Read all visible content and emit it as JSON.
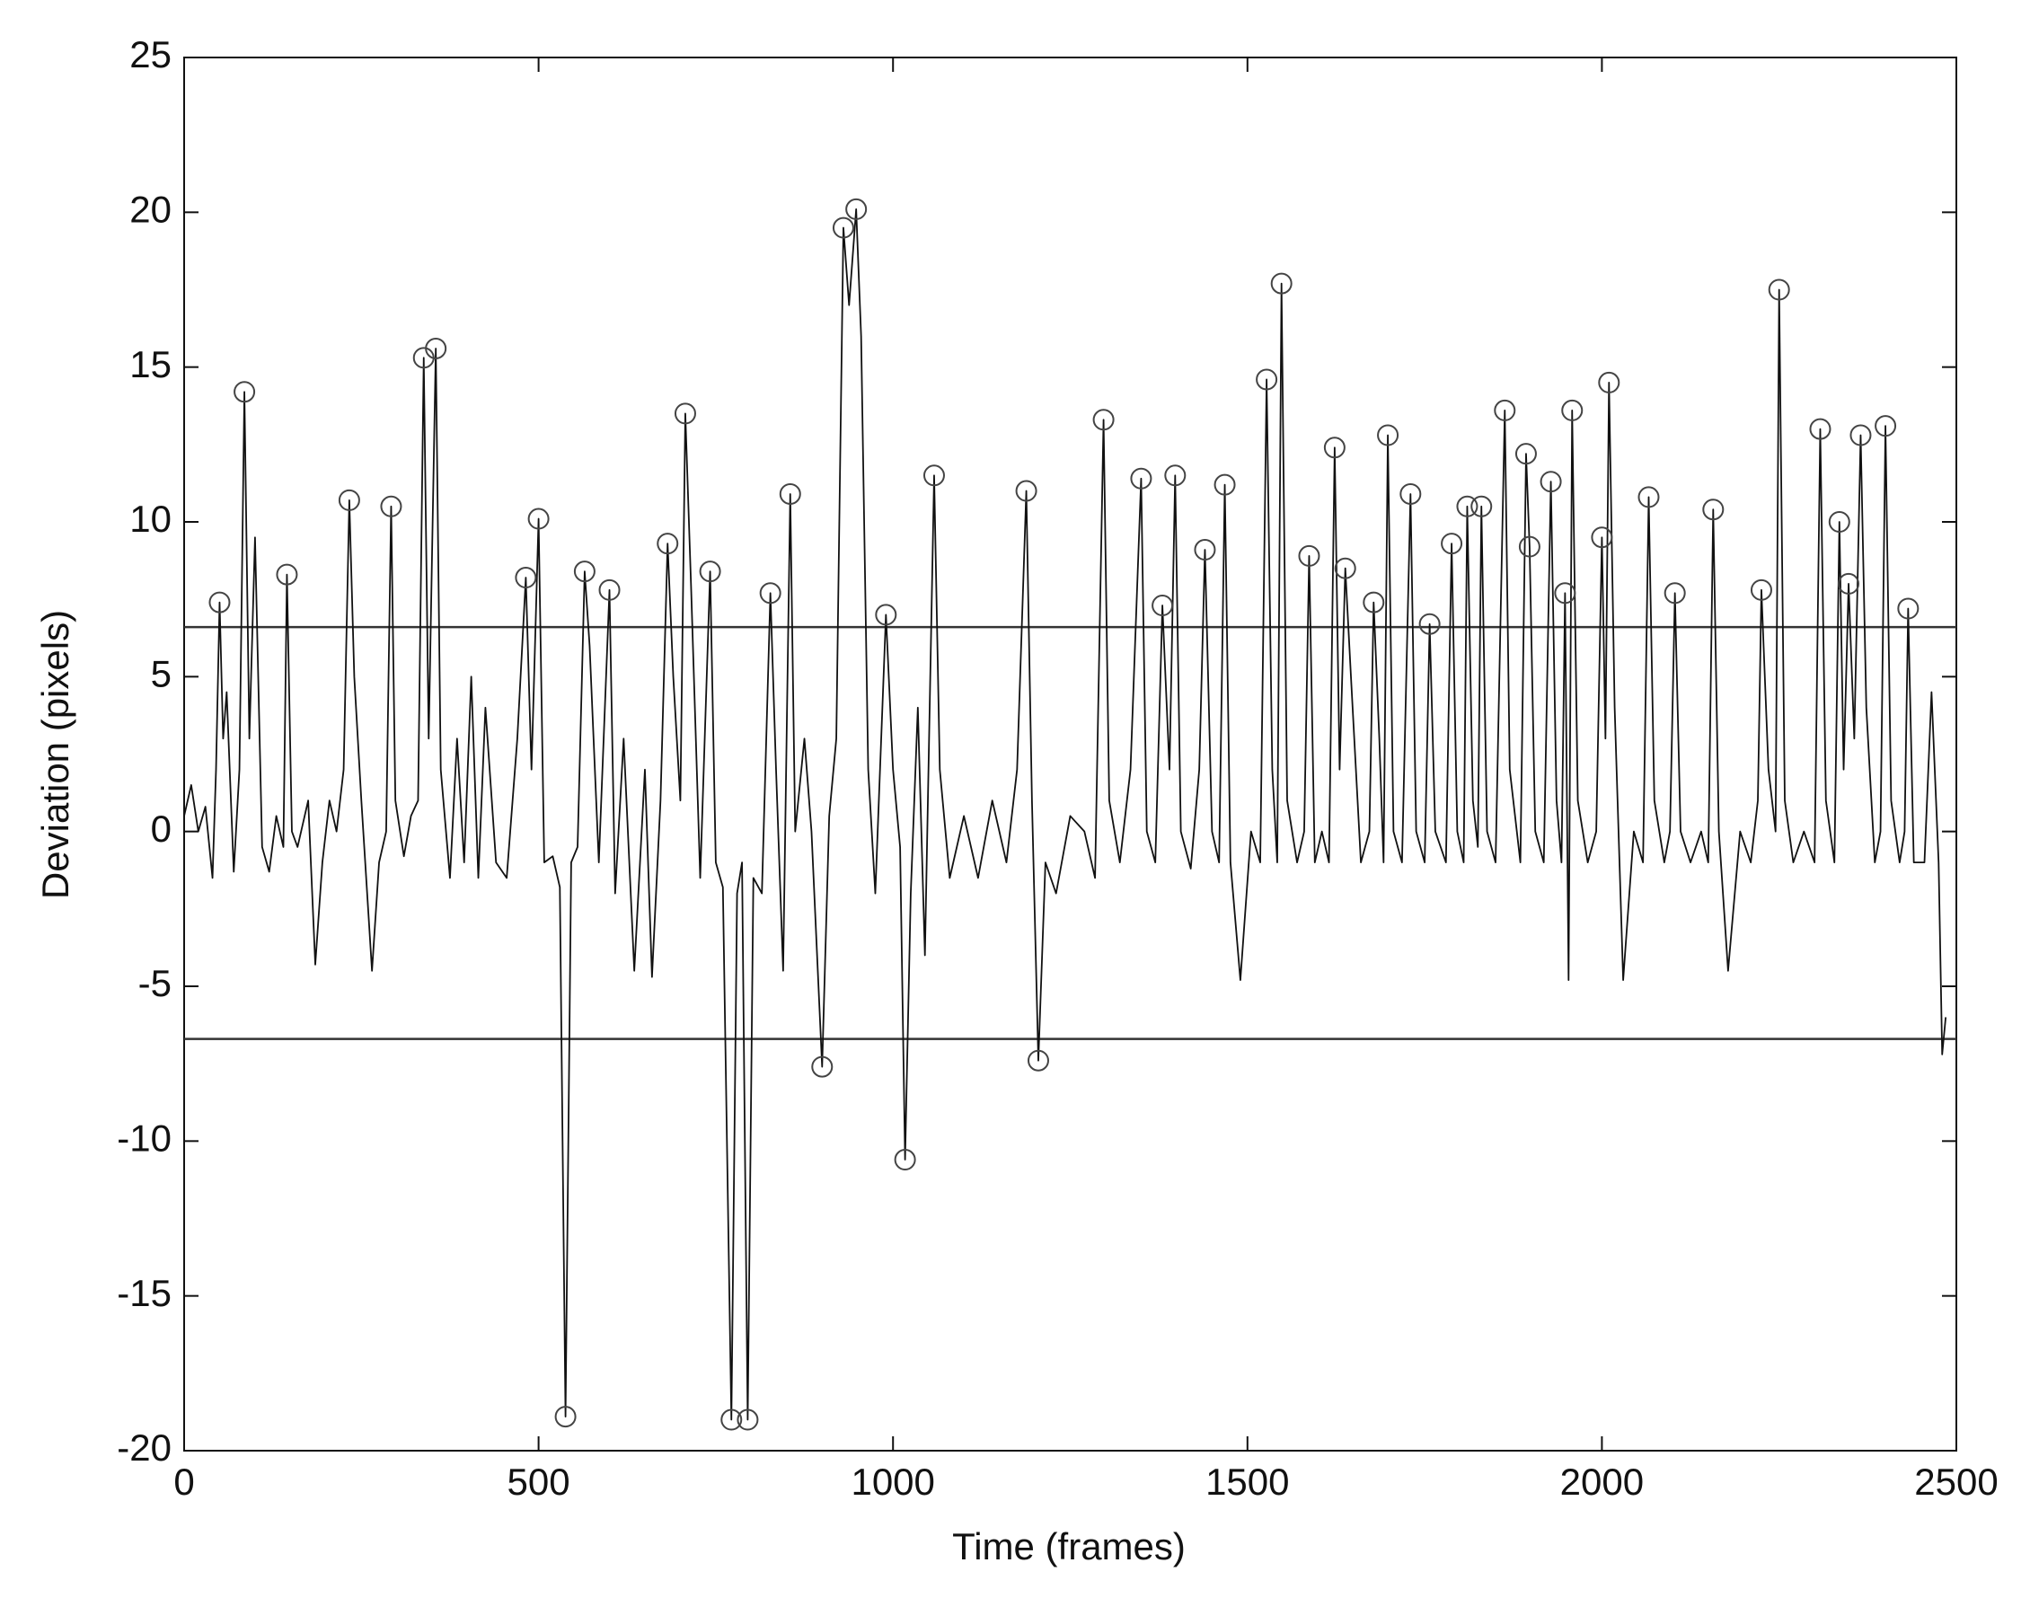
{
  "chart_data": {
    "type": "line",
    "x_label": "Time (frames)",
    "y_label": "Deviation (pixels)",
    "xlim": [
      0,
      2500
    ],
    "xticks": [
      0,
      500,
      1000,
      1500,
      2000,
      2500
    ],
    "ylim": [
      -20,
      25
    ],
    "yticks": [
      -20,
      -15,
      -10,
      -5,
      0,
      5,
      10,
      15,
      20,
      25
    ],
    "grid": false,
    "reference_lines": [
      6.6,
      -6.7
    ],
    "reference_color": "#333333",
    "series": [
      {
        "kind": "line",
        "color": "#111111",
        "x": [
          0,
          10,
          20,
          30,
          40,
          45,
          50,
          55,
          60,
          70,
          78,
          85,
          92,
          100,
          110,
          120,
          130,
          140,
          145,
          152,
          160,
          175,
          185,
          195,
          205,
          215,
          225,
          233,
          240,
          250,
          265,
          275,
          285,
          292,
          298,
          310,
          320,
          330,
          338,
          345,
          355,
          362,
          375,
          385,
          395,
          405,
          415,
          425,
          440,
          455,
          470,
          482,
          490,
          500,
          508,
          520,
          530,
          538,
          546,
          555,
          565,
          572,
          585,
          600,
          608,
          620,
          635,
          650,
          660,
          672,
          682,
          690,
          700,
          707,
          715,
          728,
          742,
          750,
          760,
          772,
          780,
          787,
          795,
          803,
          815,
          827,
          835,
          845,
          855,
          862,
          875,
          885,
          900,
          910,
          920,
          930,
          938,
          948,
          955,
          965,
          975,
          990,
          1000,
          1010,
          1017,
          1025,
          1035,
          1045,
          1058,
          1066,
          1080,
          1100,
          1120,
          1140,
          1160,
          1175,
          1188,
          1196,
          1205,
          1215,
          1230,
          1250,
          1270,
          1285,
          1297,
          1305,
          1320,
          1335,
          1350,
          1358,
          1370,
          1380,
          1390,
          1398,
          1406,
          1420,
          1432,
          1440,
          1450,
          1460,
          1468,
          1476,
          1490,
          1505,
          1518,
          1527,
          1535,
          1542,
          1548,
          1556,
          1570,
          1580,
          1587,
          1595,
          1605,
          1615,
          1623,
          1630,
          1638,
          1646,
          1660,
          1672,
          1678,
          1686,
          1692,
          1698,
          1706,
          1718,
          1730,
          1738,
          1750,
          1757,
          1765,
          1780,
          1788,
          1796,
          1805,
          1810,
          1818,
          1825,
          1830,
          1838,
          1850,
          1863,
          1870,
          1885,
          1893,
          1898,
          1906,
          1918,
          1928,
          1936,
          1943,
          1948,
          1953,
          1958,
          1966,
          1980,
          1992,
          2000,
          2005,
          2010,
          2018,
          2030,
          2045,
          2058,
          2066,
          2074,
          2088,
          2096,
          2103,
          2111,
          2125,
          2140,
          2150,
          2157,
          2165,
          2178,
          2195,
          2210,
          2220,
          2225,
          2235,
          2245,
          2250,
          2258,
          2270,
          2285,
          2300,
          2308,
          2316,
          2328,
          2335,
          2341,
          2348,
          2356,
          2365,
          2373,
          2385,
          2393,
          2400,
          2408,
          2420,
          2427,
          2432,
          2440,
          2455,
          2465,
          2475,
          2480,
          2485
        ],
        "values": [
          0.5,
          1.5,
          0,
          0.8,
          -1.5,
          2,
          7.4,
          3,
          4.5,
          -1.3,
          2,
          14.2,
          3,
          9.5,
          -0.5,
          -1.3,
          0.5,
          -0.5,
          8.3,
          0,
          -0.5,
          1,
          -4.3,
          -1,
          1,
          0,
          2,
          10.7,
          5,
          1,
          -4.5,
          -1,
          0,
          10.5,
          1,
          -0.8,
          0.5,
          1,
          15.3,
          3,
          15.6,
          2,
          -1.5,
          3,
          -1,
          5,
          -1.5,
          4,
          -1,
          -1.5,
          3,
          8.2,
          2,
          10.1,
          -1,
          -0.8,
          -1.8,
          -18.9,
          -1,
          -0.5,
          8.4,
          6,
          -1,
          7.8,
          -2,
          3,
          -4.5,
          2,
          -4.7,
          1,
          9.3,
          5,
          1,
          13.5,
          8,
          -1.5,
          8.4,
          -1,
          -1.8,
          -19.0,
          -2,
          -1,
          -19.0,
          -1.5,
          -2,
          7.7,
          2,
          -4.5,
          10.9,
          0,
          3,
          0,
          -7.6,
          0.5,
          3,
          19.5,
          17,
          20.1,
          16,
          2,
          -2,
          7.0,
          2,
          -0.5,
          -10.6,
          -2,
          4,
          -4,
          11.5,
          2,
          -1.5,
          0.5,
          -1.5,
          1,
          -1,
          2,
          11.0,
          1,
          -7.4,
          -1,
          -2,
          0.5,
          0,
          -1.5,
          13.3,
          1,
          -1,
          2,
          11.4,
          0,
          -1,
          7.3,
          2,
          11.5,
          0,
          -1.2,
          2,
          9.1,
          0,
          -1,
          11.2,
          -1,
          -4.8,
          0,
          -1,
          14.6,
          2,
          -1,
          17.7,
          1,
          -1,
          0,
          8.9,
          -1,
          0,
          -1,
          12.4,
          2,
          8.5,
          5,
          -1,
          0,
          7.4,
          3,
          -1,
          12.8,
          0,
          -1,
          10.9,
          0,
          -1,
          6.7,
          0,
          -1,
          9.3,
          0,
          -1,
          10.5,
          1,
          -0.5,
          10.5,
          0,
          -1,
          13.6,
          2,
          -1,
          12.2,
          9.2,
          0,
          -1,
          11.3,
          1,
          -1,
          7.7,
          -4.8,
          13.6,
          1,
          -1,
          0,
          9.5,
          3,
          14.5,
          4,
          -4.8,
          0,
          -1,
          10.8,
          1,
          -1,
          0,
          7.7,
          0,
          -1,
          0,
          -1,
          10.4,
          0,
          -4.5,
          0,
          -1,
          1,
          7.8,
          2,
          0,
          17.5,
          1,
          -1,
          0,
          -1,
          13.0,
          1,
          -1,
          10.0,
          2,
          8.0,
          3,
          12.8,
          4,
          -1,
          0,
          13.1,
          1,
          -1,
          0,
          7.2,
          -1,
          -1,
          4.5,
          -1,
          -7.2,
          -6
        ]
      },
      {
        "kind": "peaks",
        "color": "#444444",
        "x": [
          50,
          85,
          145,
          233,
          292,
          338,
          355,
          482,
          500,
          565,
          600,
          682,
          707,
          742,
          827,
          855,
          930,
          948,
          990,
          1058,
          1188,
          1297,
          1350,
          1380,
          1398,
          1440,
          1468,
          1527,
          1548,
          1587,
          1623,
          1638,
          1678,
          1698,
          1730,
          1757,
          1788,
          1810,
          1830,
          1863,
          1893,
          1898,
          1928,
          1948,
          1958,
          2000,
          2010,
          2066,
          2103,
          2157,
          2225,
          2250,
          2308,
          2335,
          2348,
          2365,
          2400,
          2432,
          538,
          772,
          795,
          900,
          1017,
          1205
        ],
        "values": [
          7.4,
          14.2,
          8.3,
          10.7,
          10.5,
          15.3,
          15.6,
          8.2,
          10.1,
          8.4,
          7.8,
          9.3,
          13.5,
          8.4,
          7.7,
          10.9,
          19.5,
          20.1,
          7.0,
          11.5,
          11.0,
          13.3,
          11.4,
          7.3,
          11.5,
          9.1,
          11.2,
          14.6,
          17.7,
          8.9,
          12.4,
          8.5,
          7.4,
          12.8,
          10.9,
          6.7,
          9.3,
          10.5,
          10.5,
          13.6,
          12.2,
          9.2,
          11.3,
          7.7,
          13.6,
          9.5,
          14.5,
          10.8,
          7.7,
          10.4,
          7.8,
          17.5,
          13.0,
          10.0,
          8.0,
          12.8,
          13.1,
          7.2,
          -18.9,
          -19.0,
          -19.0,
          -7.6,
          -10.6,
          -7.4
        ]
      }
    ]
  }
}
